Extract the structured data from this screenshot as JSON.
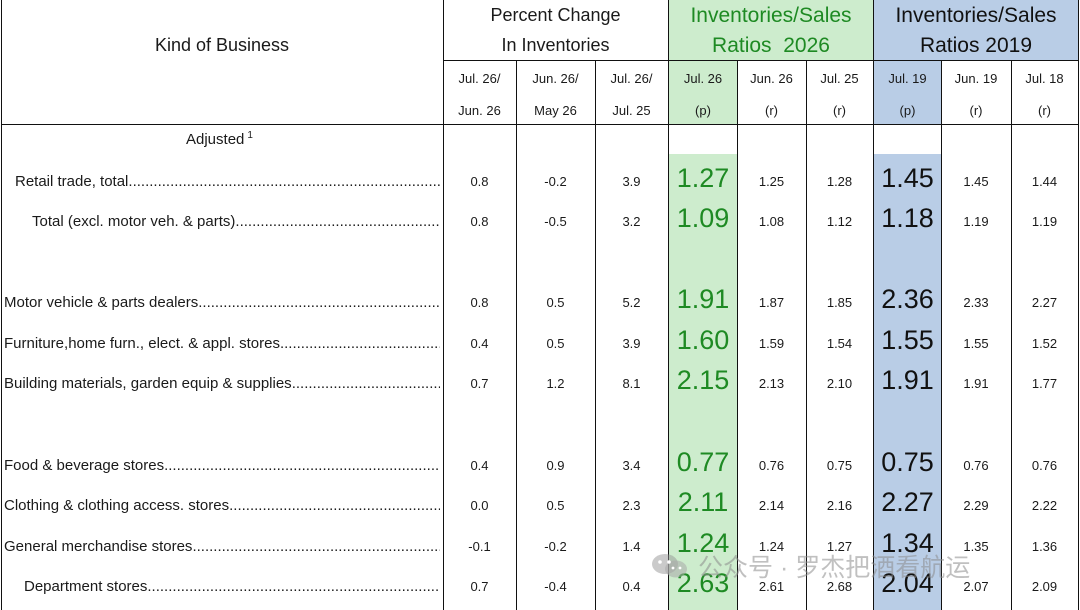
{
  "header": {
    "kind_of_business": "Kind of Business",
    "pct_change_line1": "Percent Change",
    "pct_change_line2": "In Inventories",
    "ratios2026_line1": "Inventories/Sales",
    "ratios2026_line2": "Ratios  2026",
    "ratios2019_line1": "Inventories/Sales",
    "ratios2019_line2": "Ratios 2019"
  },
  "subheaders": [
    {
      "top": "Jul. 26/",
      "bottom": "Jun. 26"
    },
    {
      "top": "Jun. 26/",
      "bottom": "May 26"
    },
    {
      "top": "Jul. 26/",
      "bottom": "Jul. 25"
    },
    {
      "top": "Jul. 26",
      "bottom": "(p)"
    },
    {
      "top": "Jun. 26",
      "bottom": "(r)"
    },
    {
      "top": "Jul. 25",
      "bottom": "(r)"
    },
    {
      "top": "Jul. 19",
      "bottom": "(p)"
    },
    {
      "top": "Jun. 19",
      "bottom": "(r)"
    },
    {
      "top": "Jul. 18",
      "bottom": "(r)"
    }
  ],
  "section_label": "Adjusted",
  "section_footnote": "1",
  "rows": [
    {
      "label": "Retail trade, total",
      "values": [
        "0.8",
        "-0.2",
        "3.9",
        "1.27",
        "1.25",
        "1.28",
        "1.45",
        "1.45",
        "1.44"
      ]
    },
    {
      "label": "Total (excl. motor veh. & parts)",
      "values": [
        "0.8",
        "-0.5",
        "3.2",
        "1.09",
        "1.08",
        "1.12",
        "1.18",
        "1.19",
        "1.19"
      ]
    },
    {
      "label": "Motor vehicle & parts dealers",
      "values": [
        "0.8",
        "0.5",
        "5.2",
        "1.91",
        "1.87",
        "1.85",
        "2.36",
        "2.33",
        "2.27"
      ]
    },
    {
      "label": "Furniture,home furn., elect. & appl. stores",
      "values": [
        "0.4",
        "0.5",
        "3.9",
        "1.60",
        "1.59",
        "1.54",
        "1.55",
        "1.55",
        "1.52"
      ]
    },
    {
      "label": "Building materials, garden equip & supplies",
      "values": [
        "0.7",
        "1.2",
        "8.1",
        "2.15",
        "2.13",
        "2.10",
        "1.91",
        "1.91",
        "1.77"
      ]
    },
    {
      "label": "Food & beverage stores",
      "values": [
        "0.4",
        "0.9",
        "3.4",
        "0.77",
        "0.76",
        "0.75",
        "0.75",
        "0.76",
        "0.76"
      ]
    },
    {
      "label": "Clothing & clothing access. stores",
      "values": [
        "0.0",
        "0.5",
        "2.3",
        "2.11",
        "2.14",
        "2.16",
        "2.27",
        "2.29",
        "2.22"
      ]
    },
    {
      "label": "General merchandise stores",
      "values": [
        "-0.1",
        "-0.2",
        "1.4",
        "1.24",
        "1.24",
        "1.27",
        "1.34",
        "1.35",
        "1.36"
      ]
    },
    {
      "label": "Department stores",
      "values": [
        "0.7",
        "-0.4",
        "0.4",
        "2.63",
        "2.61",
        "2.68",
        "2.04",
        "2.07",
        "2.09"
      ]
    }
  ],
  "watermark": "公众号 · 罗杰把酒看航运",
  "colors": {
    "green_fill": "#cdeccd",
    "blue_fill": "#b9cde6",
    "green_text": "#1e8a23"
  }
}
